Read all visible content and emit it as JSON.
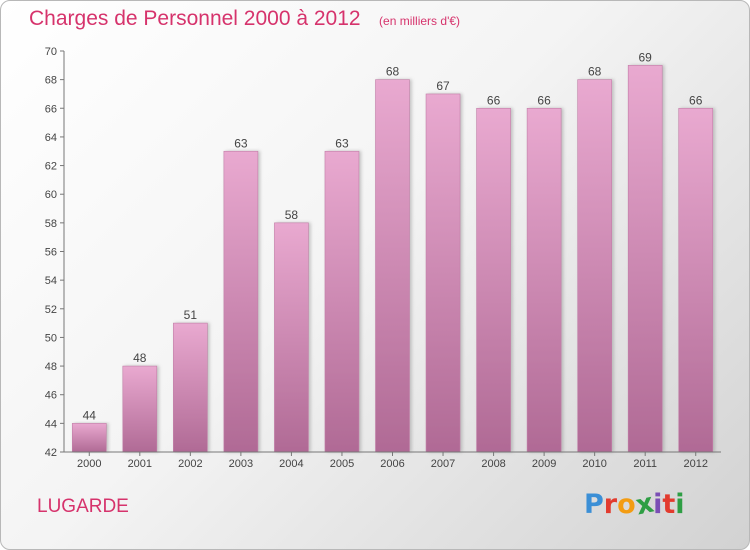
{
  "header": {
    "title": "Charges de Personnel 2000 à 2012",
    "unit": "(en milliers d'€)"
  },
  "footer": {
    "commune": "LUGARDE",
    "logo_letters": [
      "P",
      "r",
      "o",
      "x",
      "i",
      "t",
      "i"
    ],
    "logo_colors": [
      "#3b8fd6",
      "#e23b2e",
      "#f39c12",
      "#2e9e44",
      "#7b4fb5",
      "#e23b2e",
      "#2e9e44"
    ]
  },
  "colors": {
    "accent": "#d6336c",
    "bar_top": "#e9a9d0",
    "bar_bottom": "#b06a95"
  },
  "chart_data": {
    "type": "bar",
    "title": "Charges de Personnel 2000 à 2012",
    "subtitle": "(en milliers d'€)",
    "categories": [
      "2000",
      "2001",
      "2002",
      "2003",
      "2004",
      "2005",
      "2006",
      "2007",
      "2008",
      "2009",
      "2010",
      "2011",
      "2012"
    ],
    "values": [
      44,
      48,
      51,
      63,
      58,
      63,
      68,
      67,
      66,
      66,
      68,
      69,
      66
    ],
    "ylim": [
      42,
      70
    ],
    "yticks": [
      42,
      44,
      46,
      48,
      50,
      52,
      54,
      56,
      58,
      60,
      62,
      64,
      66,
      68,
      70
    ],
    "grid": false,
    "legend": "none"
  }
}
